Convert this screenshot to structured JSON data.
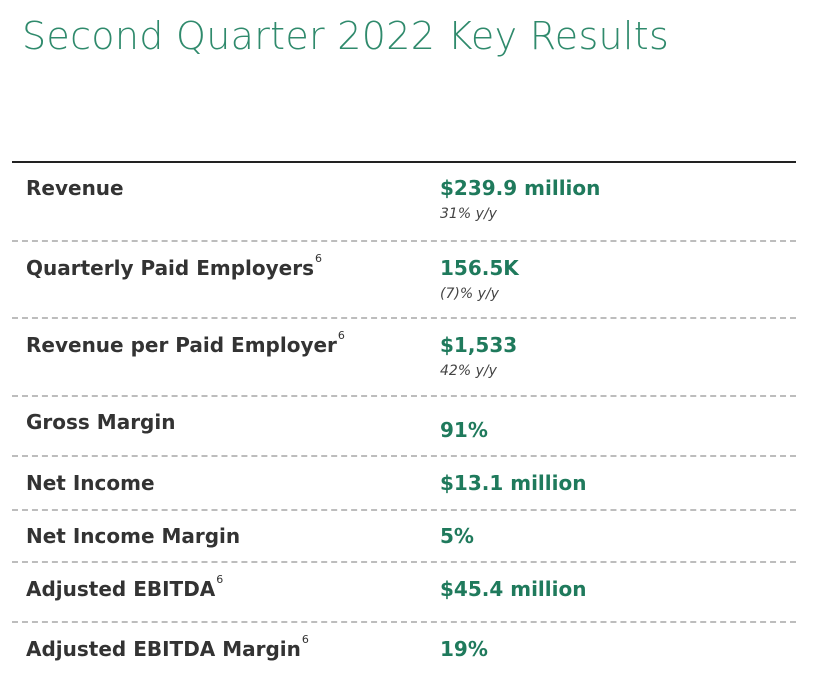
{
  "title": "Second Quarter 2022 Key Results",
  "rows": [
    {
      "label": "Revenue",
      "sup": "",
      "value": "$239.9 million",
      "change": "31% y/y"
    },
    {
      "label": "Quarterly Paid Employers",
      "sup": "6",
      "value": "156.5K",
      "change": "(7)% y/y"
    },
    {
      "label": "Revenue per Paid Employer",
      "sup": "6",
      "value": "$1,533",
      "change": "42% y/y"
    },
    {
      "label": "Gross Margin",
      "sup": "",
      "value": "91%"
    },
    {
      "label": "Net Income",
      "sup": "",
      "value": "$13.1 million"
    },
    {
      "label": "Net Income Margin",
      "sup": "",
      "value": "5%"
    },
    {
      "label": "Adjusted EBITDA",
      "sup": "6",
      "value": "$45.4 million"
    },
    {
      "label": "Adjusted EBITDA Margin",
      "sup": "6",
      "value": "19%"
    }
  ]
}
